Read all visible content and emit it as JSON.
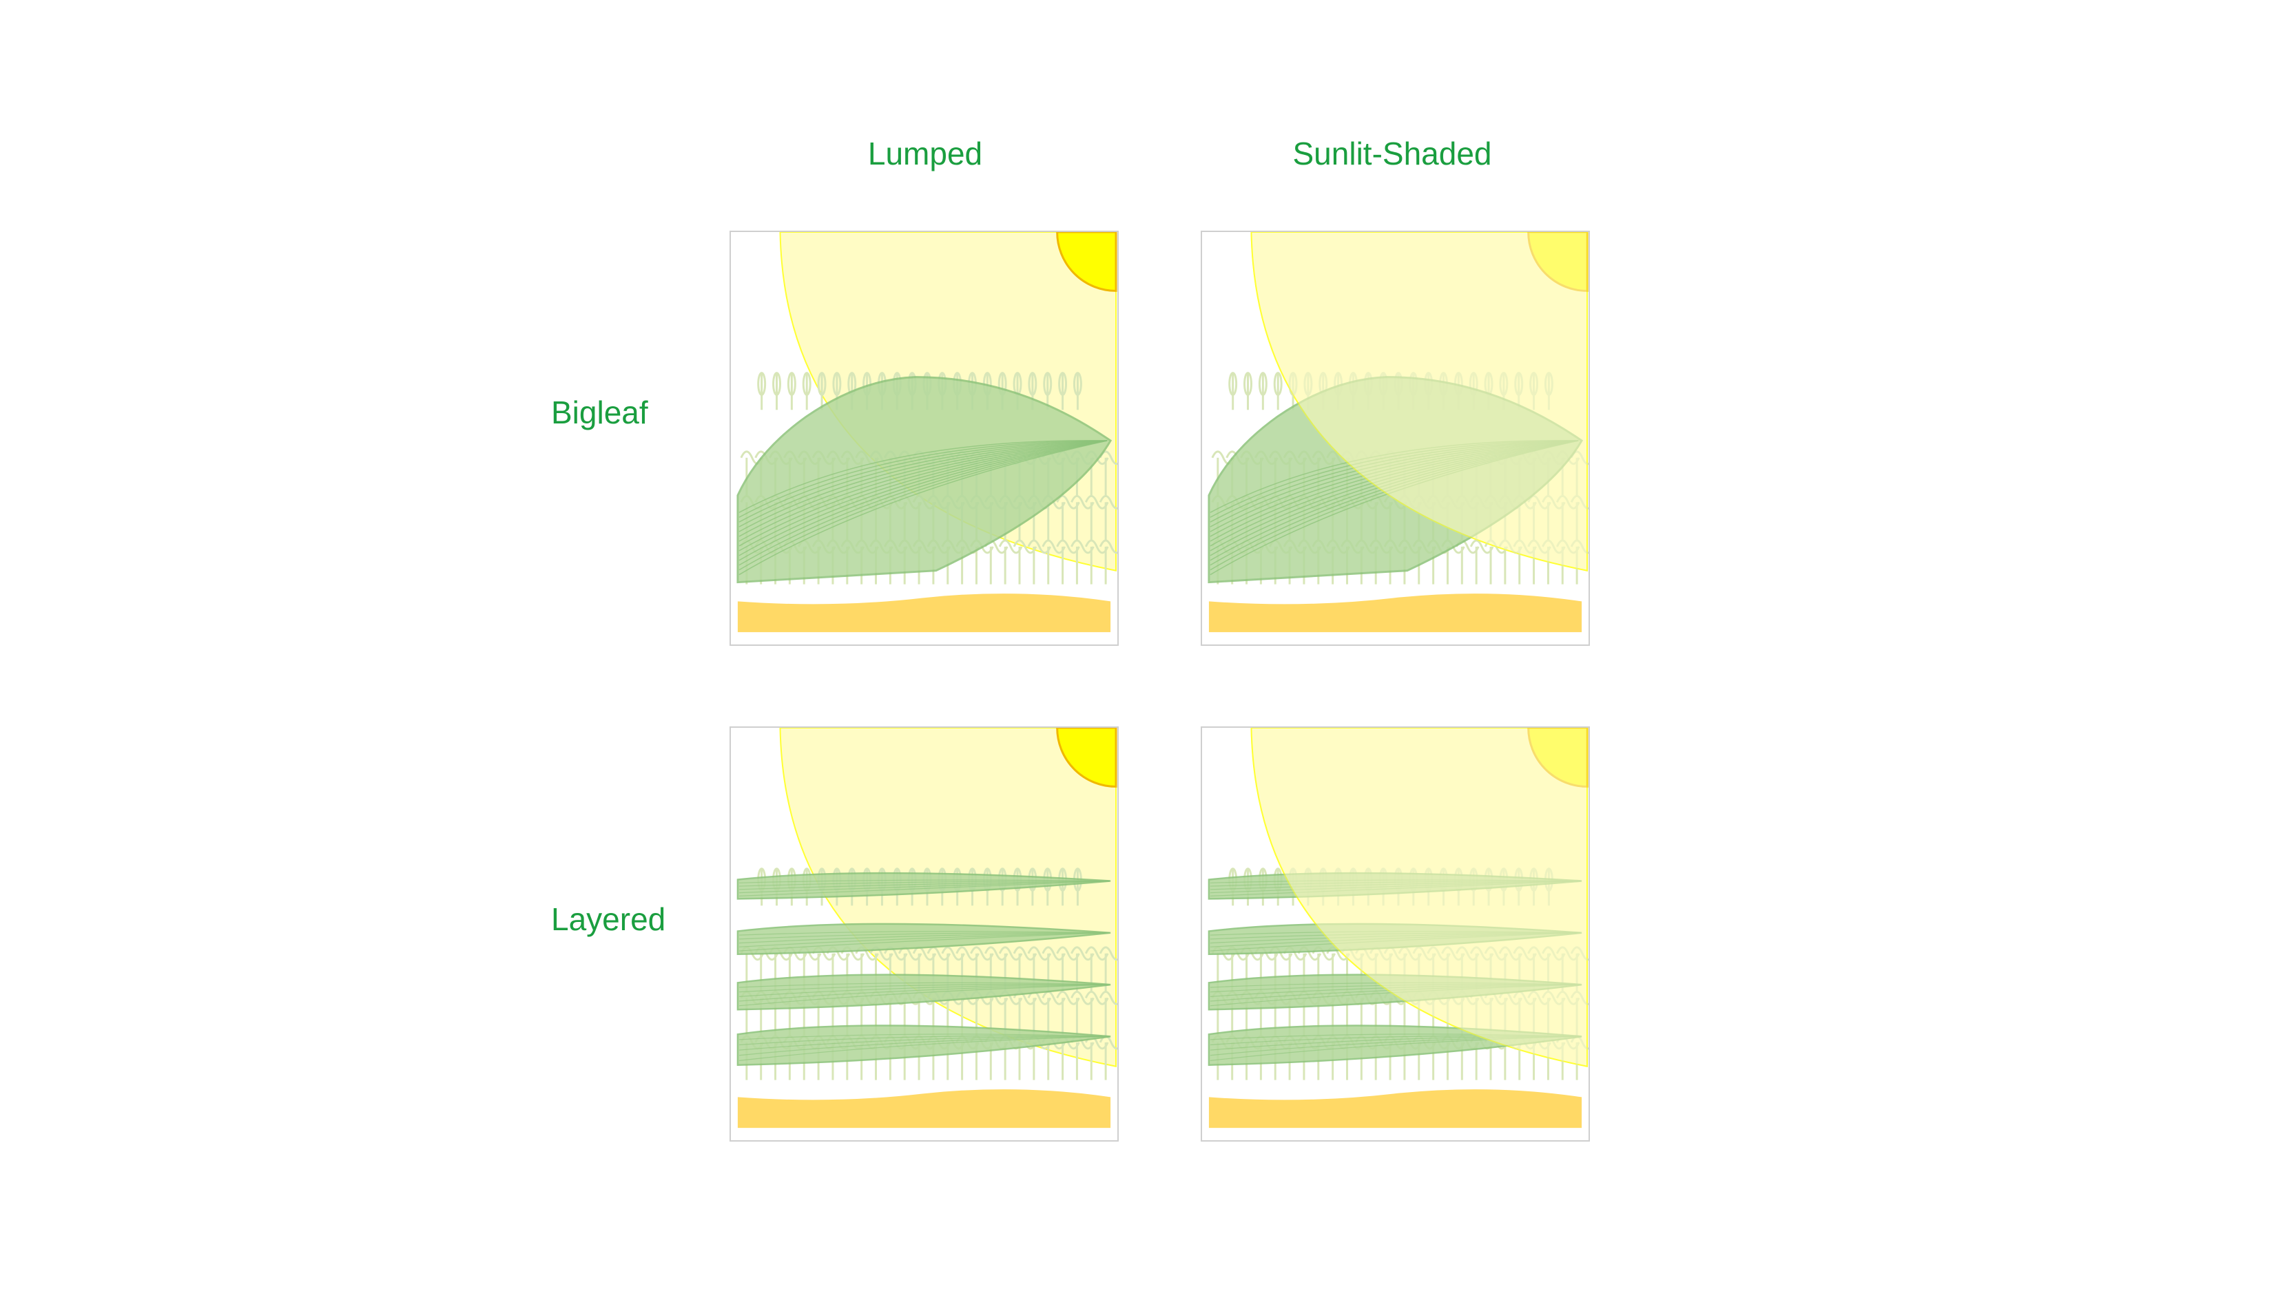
{
  "columns": {
    "lumped": "Lumped",
    "sunlit_shaded": "Sunlit-Shaded"
  },
  "rows": {
    "bigleaf": "Bigleaf",
    "layered": "Layered"
  },
  "colors": {
    "label_green": "#1a9e3f",
    "sky_glow": "#fffcc5",
    "sun": "#ffff00",
    "sun_outline": "#f0b800",
    "leaf": "#b3d89c",
    "leaf_outline": "#8cc37a",
    "soil": "#ffd966",
    "crop_sketch": "#d8e6b8"
  },
  "panels": [
    {
      "id": "bigleaf-lumped",
      "model": "bigleaf",
      "light": "lumped"
    },
    {
      "id": "bigleaf-sunlit-shaded",
      "model": "bigleaf",
      "light": "sunlit-shaded"
    },
    {
      "id": "layered-lumped",
      "model": "layered",
      "light": "lumped",
      "layers": 4
    },
    {
      "id": "layered-sunlit-shaded",
      "model": "layered",
      "light": "sunlit-shaded",
      "layers": 4
    }
  ]
}
